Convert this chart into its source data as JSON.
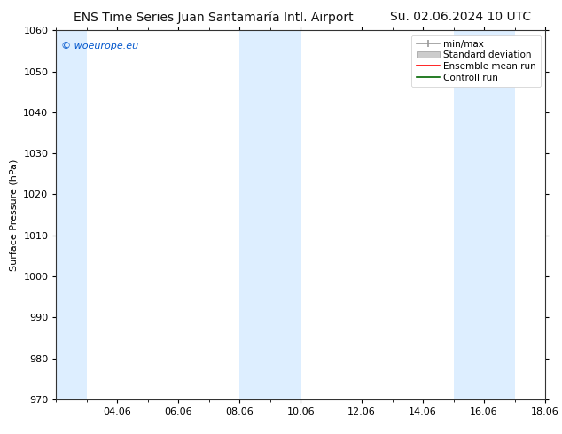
{
  "title_left": "ENS Time Series Juan Santamaría Intl. Airport",
  "title_right": "Su. 02.06.2024 10 UTC",
  "ylabel": "Surface Pressure (hPa)",
  "ylim": [
    970,
    1060
  ],
  "yticks": [
    970,
    980,
    990,
    1000,
    1010,
    1020,
    1030,
    1040,
    1050,
    1060
  ],
  "xtick_positions": [
    2,
    4,
    6,
    8,
    10,
    12,
    14,
    16
  ],
  "xtick_labels": [
    "04.06",
    "06.06",
    "08.06",
    "10.06",
    "12.06",
    "14.06",
    "16.06",
    "18.06"
  ],
  "xlim": [
    0,
    16
  ],
  "watermark": "© woeurope.eu",
  "watermark_color": "#0055cc",
  "shaded_bands": [
    {
      "x_start": 0.0,
      "x_end": 1.0,
      "color": "#ddeeff"
    },
    {
      "x_start": 6.0,
      "x_end": 8.0,
      "color": "#ddeeff"
    },
    {
      "x_start": 13.0,
      "x_end": 15.0,
      "color": "#ddeeff"
    }
  ],
  "legend_items": [
    {
      "label": "min/max",
      "color": "#aaaaaa",
      "type": "errorbar"
    },
    {
      "label": "Standard deviation",
      "color": "#cccccc",
      "type": "band"
    },
    {
      "label": "Ensemble mean run",
      "color": "#ff0000",
      "type": "line"
    },
    {
      "label": "Controll run",
      "color": "#008000",
      "type": "line"
    }
  ],
  "background_color": "#ffffff",
  "plot_bg_color": "#ffffff",
  "title_fontsize": 10,
  "tick_fontsize": 8,
  "legend_fontsize": 7.5,
  "watermark_fontsize": 8,
  "ylabel_fontsize": 8
}
